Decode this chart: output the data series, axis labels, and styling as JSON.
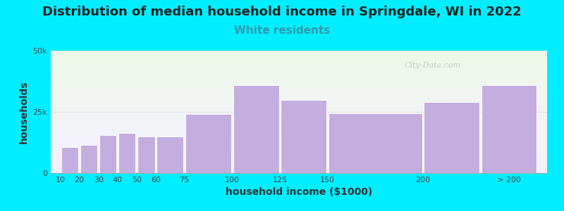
{
  "title": "Distribution of median household income in Springdale, WI in 2022",
  "subtitle": "White residents",
  "xlabel": "household income ($1000)",
  "ylabel": "households",
  "bar_color": "#c4aee0",
  "bar_edge_color": "#ffffff",
  "categories": [
    "10",
    "20",
    "30",
    "40",
    "50",
    "60",
    "75",
    "100",
    "125",
    "150",
    "200",
    "> 200"
  ],
  "values": [
    10500,
    11500,
    15500,
    16500,
    15000,
    15000,
    24000,
    36000,
    30000,
    24500,
    29000,
    36000
  ],
  "ylim": [
    0,
    50000
  ],
  "ytick_labels": [
    "0",
    "25k",
    "50k"
  ],
  "ytick_values": [
    0,
    25000,
    50000
  ],
  "background_color": "#00eeff",
  "title_fontsize": 13,
  "subtitle_fontsize": 11,
  "title_color": "#222222",
  "subtitle_color": "#3399aa",
  "axis_label_fontsize": 10,
  "tick_fontsize": 8,
  "watermark": "City-Data.com"
}
